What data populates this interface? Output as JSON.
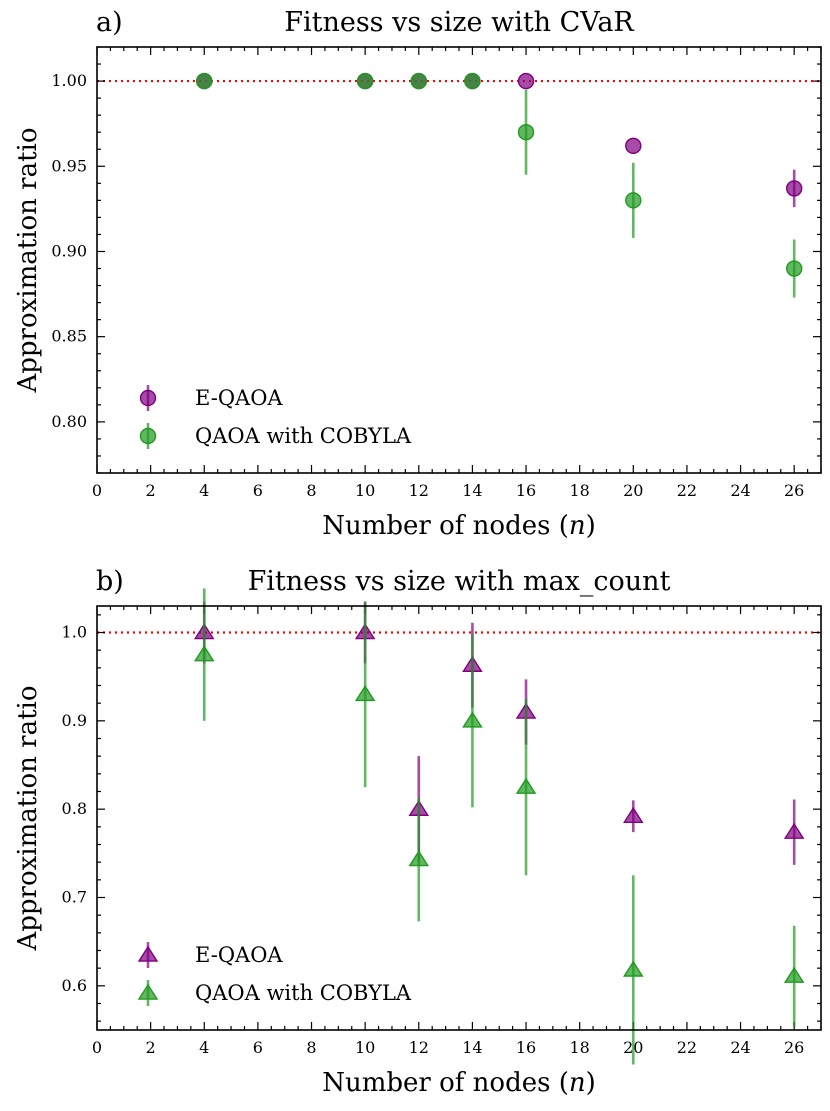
{
  "colors": {
    "e_qaoa": "#800080",
    "qaoa_cobyla": "#1f9a1f",
    "reference_line": "#ff0000"
  },
  "chart_data": [
    {
      "type": "scatter",
      "panel_label": "a)",
      "title": "Fitness vs size with CVaR",
      "xlabel": "Number of nodes (n)",
      "ylabel": "Approximation ratio",
      "xlim": [
        0,
        27
      ],
      "ylim": [
        0.77,
        1.02
      ],
      "xticks": [
        0,
        2,
        4,
        6,
        8,
        10,
        12,
        14,
        16,
        18,
        20,
        22,
        24,
        26
      ],
      "yticks": [
        0.8,
        0.85,
        0.9,
        0.95,
        1.0
      ],
      "ytick_labels": [
        "0.80",
        "0.85",
        "0.90",
        "0.95",
        "1.00"
      ],
      "reference_line": 1.0,
      "marker": "circle",
      "legend_position": "lower-left",
      "series": [
        {
          "name": "E-QAOA",
          "color_key": "e_qaoa",
          "x": [
            4,
            10,
            12,
            14,
            16,
            20,
            26
          ],
          "y": [
            1.0,
            1.0,
            1.0,
            1.0,
            1.0,
            0.962,
            0.937
          ],
          "err": [
            0,
            0,
            0,
            0,
            0,
            0,
            0.011
          ]
        },
        {
          "name": "QAOA with COBYLA",
          "color_key": "qaoa_cobyla",
          "x": [
            4,
            10,
            12,
            14,
            16,
            20,
            26
          ],
          "y": [
            1.0,
            1.0,
            1.0,
            1.0,
            0.97,
            0.93,
            0.89
          ],
          "err": [
            0,
            0,
            0,
            0,
            0.025,
            0.022,
            0.017
          ]
        }
      ]
    },
    {
      "type": "scatter",
      "panel_label": "b)",
      "title": "Fitness vs size with max_count",
      "xlabel": "Number of nodes (n)",
      "ylabel": "Approximation ratio",
      "xlim": [
        0,
        27
      ],
      "ylim": [
        0.55,
        1.03
      ],
      "xticks": [
        0,
        2,
        4,
        6,
        8,
        10,
        12,
        14,
        16,
        18,
        20,
        22,
        24,
        26
      ],
      "yticks": [
        0.6,
        0.7,
        0.8,
        0.9,
        1.0
      ],
      "ytick_labels": [
        "0.6",
        "0.7",
        "0.8",
        "0.9",
        "1.0"
      ],
      "reference_line": 1.0,
      "marker": "triangle",
      "legend_position": "lower-left",
      "series": [
        {
          "name": "E-QAOA",
          "color_key": "e_qaoa",
          "x": [
            4,
            10,
            12,
            14,
            16,
            20,
            26
          ],
          "y": [
            1.0,
            1.0,
            0.8,
            0.963,
            0.91,
            0.792,
            0.774
          ],
          "err": [
            0.035,
            0.035,
            0.06,
            0.048,
            0.037,
            0.018,
            0.037
          ]
        },
        {
          "name": "QAOA with COBYLA",
          "color_key": "qaoa_cobyla",
          "x": [
            4,
            10,
            12,
            14,
            16,
            20,
            26
          ],
          "y": [
            0.975,
            0.93,
            0.743,
            0.9,
            0.825,
            0.618,
            0.611
          ],
          "err": [
            0.075,
            0.105,
            0.07,
            0.098,
            0.1,
            0.107,
            0.057
          ]
        }
      ]
    }
  ]
}
